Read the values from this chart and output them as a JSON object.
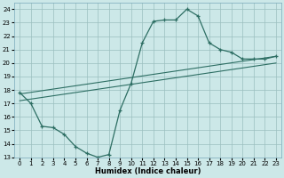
{
  "xlabel": "Humidex (Indice chaleur)",
  "xlim": [
    -0.5,
    23.5
  ],
  "ylim": [
    13,
    24.5
  ],
  "yticks": [
    13,
    14,
    15,
    16,
    17,
    18,
    19,
    20,
    21,
    22,
    23,
    24
  ],
  "xticks": [
    0,
    1,
    2,
    3,
    4,
    5,
    6,
    7,
    8,
    9,
    10,
    11,
    12,
    13,
    14,
    15,
    16,
    17,
    18,
    19,
    20,
    21,
    22,
    23
  ],
  "bg_color": "#cce8e8",
  "grid_color": "#9bbfbf",
  "line_color": "#2d6e63",
  "line1_x": [
    0,
    1,
    2,
    3,
    4,
    5,
    6,
    7,
    8,
    9,
    10,
    11,
    12,
    13,
    14,
    15,
    16,
    17,
    18,
    19,
    20,
    21,
    22,
    23
  ],
  "line1_y": [
    17.8,
    17.0,
    15.3,
    15.2,
    14.7,
    13.8,
    13.3,
    13.0,
    13.2,
    16.5,
    18.5,
    21.5,
    23.1,
    23.2,
    23.2,
    24.0,
    23.5,
    21.5,
    21.0,
    20.8,
    20.3,
    20.3,
    20.3,
    20.5
  ],
  "line2_x": [
    0,
    23
  ],
  "line2_y": [
    17.7,
    20.5
  ],
  "line3_x": [
    0,
    23
  ],
  "line3_y": [
    17.2,
    20.0
  ]
}
